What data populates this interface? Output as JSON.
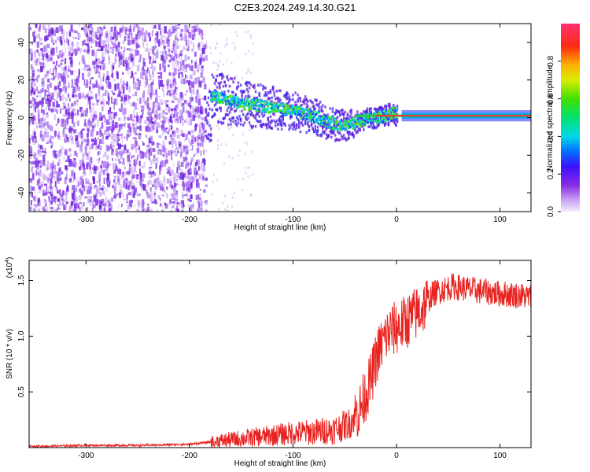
{
  "title": "C2E3.2024.249.14.30.G21",
  "colors": {
    "snr_line": "#e8221f",
    "ridge_center": "#ff2a1e",
    "ridge_edge": "#00a5ff",
    "noise": "#7a2be0",
    "noise_light": "#c8a8f5"
  },
  "chart_data": [
    {
      "type": "heatmap",
      "title": "",
      "xlabel": "Height of straight line (km)",
      "ylabel": "Frequency (Hz)",
      "xlim": [
        -355,
        130
      ],
      "ylim": [
        -50,
        50
      ],
      "xticks": [
        -300,
        -200,
        -100,
        0,
        100
      ],
      "yticks": [
        -40,
        -20,
        0,
        20,
        40
      ],
      "xtick_labels": [
        "-300",
        "-200",
        "-100",
        "0",
        "100"
      ],
      "ytick_labels": [
        "-40",
        "-20",
        "0",
        "20",
        "40"
      ],
      "ridge": [
        {
          "x": -180,
          "y": 12
        },
        {
          "x": -150,
          "y": 8
        },
        {
          "x": -120,
          "y": 6
        },
        {
          "x": -100,
          "y": 4
        },
        {
          "x": -80,
          "y": 1
        },
        {
          "x": -60,
          "y": -3
        },
        {
          "x": -45,
          "y": -3
        },
        {
          "x": -30,
          "y": 0
        },
        {
          "x": -15,
          "y": 1
        },
        {
          "x": -5,
          "y": 3
        },
        {
          "x": 5,
          "y": 1
        },
        {
          "x": 130,
          "y": 1
        }
      ],
      "noise_region_xmax": -185,
      "colorbar": {
        "label": "Normalized spectral amplitude",
        "range": [
          0,
          1
        ],
        "ticks": [
          0.0,
          0.2,
          0.4,
          0.6,
          0.8
        ],
        "tick_labels": [
          "0.0",
          "0.2",
          "0.4",
          "0.6",
          "0.8"
        ]
      }
    },
    {
      "type": "line",
      "title": "",
      "xlabel": "Height of straight line (km)",
      "ylabel": "SNR (10 * v/v)",
      "y_multiplier": "(x10",
      "y_multiplier_exp": "4",
      "xlim": [
        -355,
        130
      ],
      "ylim": [
        0,
        1.68
      ],
      "xticks": [
        -300,
        -200,
        -100,
        0,
        100
      ],
      "yticks": [
        0.5,
        1.0,
        1.5
      ],
      "xtick_labels": [
        "-300",
        "-200",
        "-100",
        "0",
        "100"
      ],
      "ytick_labels": [
        "0.5",
        "1.0",
        "1.5"
      ],
      "series": [
        {
          "name": "SNR",
          "points": [
            [
              -355,
              0.01
            ],
            [
              -300,
              0.02
            ],
            [
              -250,
              0.02
            ],
            [
              -200,
              0.03
            ],
            [
              -180,
              0.05
            ],
            [
              -160,
              0.07
            ],
            [
              -140,
              0.09
            ],
            [
              -120,
              0.11
            ],
            [
              -100,
              0.13
            ],
            [
              -80,
              0.14
            ],
            [
              -60,
              0.16
            ],
            [
              -45,
              0.22
            ],
            [
              -35,
              0.35
            ],
            [
              -25,
              0.6
            ],
            [
              -18,
              0.85
            ],
            [
              -10,
              1.0
            ],
            [
              -5,
              1.05
            ],
            [
              5,
              1.1
            ],
            [
              15,
              1.17
            ],
            [
              25,
              1.25
            ],
            [
              35,
              1.38
            ],
            [
              45,
              1.42
            ],
            [
              55,
              1.45
            ],
            [
              70,
              1.42
            ],
            [
              85,
              1.4
            ],
            [
              100,
              1.38
            ],
            [
              115,
              1.37
            ],
            [
              130,
              1.35
            ]
          ]
        }
      ]
    }
  ]
}
